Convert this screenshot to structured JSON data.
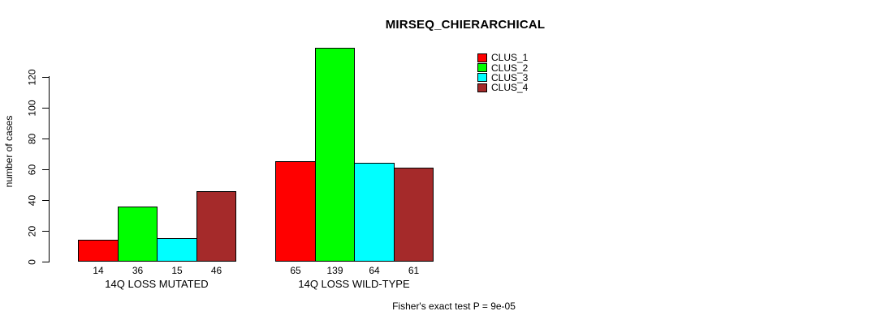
{
  "chart_data": {
    "type": "bar",
    "title": "MIRSEQ_CHIERARCHICAL",
    "ylabel": "number of cases",
    "xlabel": "",
    "y_ticks": [
      0,
      20,
      40,
      60,
      80,
      100,
      120
    ],
    "ylim": [
      0,
      139
    ],
    "grid": false,
    "categories": [
      "14Q LOSS MUTATED",
      "14Q LOSS WILD-TYPE"
    ],
    "groups": [
      {
        "label": "14Q LOSS MUTATED",
        "values": [
          14,
          36,
          15,
          46
        ]
      },
      {
        "label": "14Q LOSS WILD-TYPE",
        "values": [
          65,
          139,
          64,
          61
        ]
      }
    ],
    "series": [
      {
        "name": "CLUS_1",
        "color": "#FF0000",
        "values": [
          14,
          65
        ]
      },
      {
        "name": "CLUS_2",
        "color": "#00FF00",
        "values": [
          36,
          139
        ]
      },
      {
        "name": "CLUS_3",
        "color": "#00FFFF",
        "values": [
          15,
          64
        ]
      },
      {
        "name": "CLUS_4",
        "color": "#A52A2A",
        "values": [
          46,
          61
        ]
      }
    ],
    "legend": {
      "position": "topright",
      "entries": [
        {
          "label": "CLUS_1",
          "color": "#FF0000"
        },
        {
          "label": "CLUS_2",
          "color": "#00FF00"
        },
        {
          "label": "CLUS_3",
          "color": "#00FFFF"
        },
        {
          "label": "CLUS_4",
          "color": "#A52A2A"
        }
      ]
    },
    "annotation": "Fisher's exact test P = 9e-05",
    "colors": {
      "axis": "#000000",
      "text": "#000000",
      "background": "#FFFFFF"
    }
  }
}
